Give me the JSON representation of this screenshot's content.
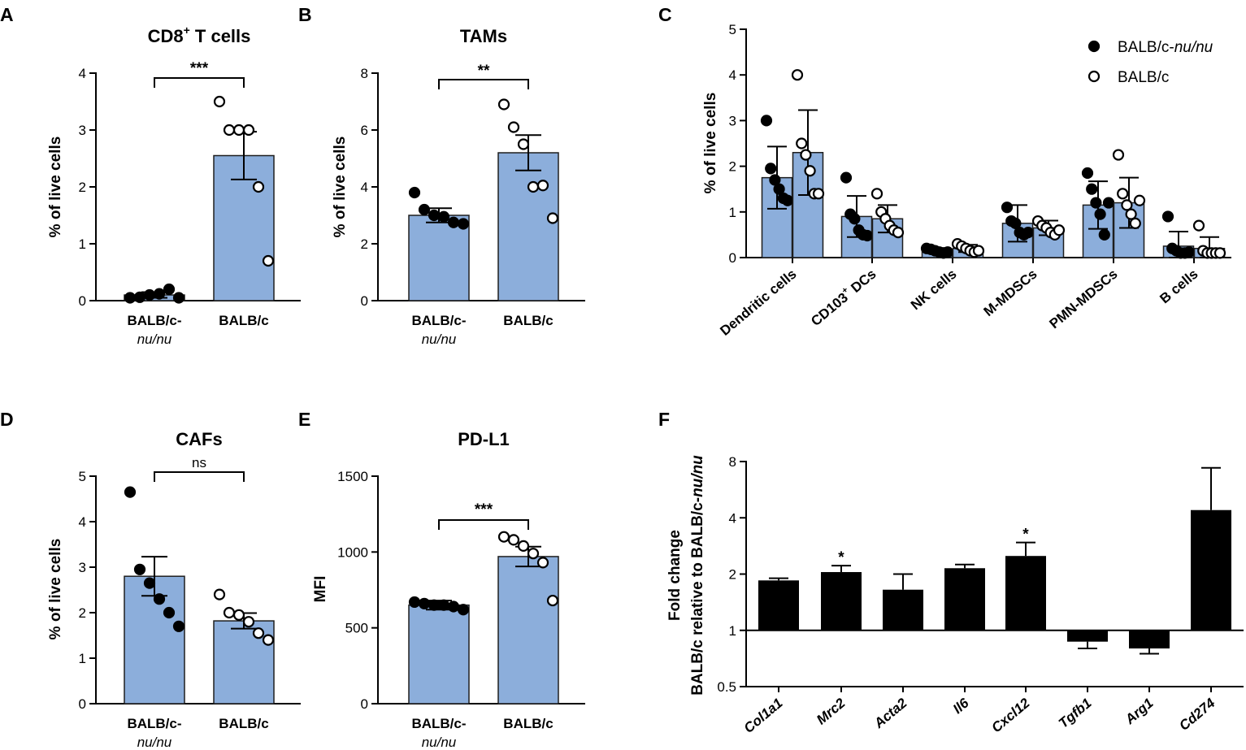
{
  "chart_data": [
    {
      "panel": "A",
      "type": "bar",
      "title": "CD8",
      "title_sup": "+",
      "title_rest": " T cells",
      "ylabel": "% of live cells",
      "ylim": [
        0,
        4
      ],
      "yticks": [
        "0",
        "1",
        "2",
        "3",
        "4"
      ],
      "categories": [
        {
          "line1": "BALB/c-",
          "line2": "nu/nu"
        },
        {
          "line1": "BALB/c",
          "line2": ""
        }
      ],
      "values": [
        0.1,
        2.55
      ],
      "err": [
        0.05,
        0.42
      ],
      "points": [
        [
          0.05,
          0.06,
          0.1,
          0.12,
          0.2,
          0.05
        ],
        [
          3.5,
          3.0,
          3.0,
          3.0,
          2.0,
          0.7
        ]
      ],
      "significance": "***"
    },
    {
      "panel": "B",
      "type": "bar",
      "title": "TAMs",
      "ylabel": "% of live cells",
      "ylim": [
        0,
        8
      ],
      "yticks": [
        "0",
        "2",
        "4",
        "6",
        "8"
      ],
      "categories": [
        {
          "line1": "BALB/c-",
          "line2": "nu/nu"
        },
        {
          "line1": "BALB/c",
          "line2": ""
        }
      ],
      "values": [
        3.0,
        5.2
      ],
      "err": [
        0.25,
        0.62
      ],
      "points": [
        [
          3.8,
          3.2,
          3.0,
          2.95,
          2.75,
          2.7
        ],
        [
          6.9,
          6.1,
          5.5,
          4.0,
          4.05,
          2.9
        ]
      ],
      "significance": "**"
    },
    {
      "panel": "C",
      "type": "bar",
      "ylabel": "% of live cells",
      "ylim": [
        0,
        5
      ],
      "yticks": [
        "0",
        "1",
        "2",
        "3",
        "4",
        "5"
      ],
      "categories": [
        "Dendritic cells",
        "CD103+ DCs",
        "NK cells",
        "M-MDSCs",
        "PMN-MDSCs",
        "B cells"
      ],
      "cat_sup_index": 1,
      "series": [
        {
          "name": "BALB/c-nu/nu",
          "name_base": "BALB/c-",
          "name_italic": "nu/nu",
          "values": [
            1.75,
            0.9,
            0.15,
            0.75,
            1.15,
            0.25
          ],
          "err": [
            0.68,
            0.45,
            0.06,
            0.4,
            0.52,
            0.32
          ],
          "points": [
            [
              3.0,
              1.95,
              1.7,
              1.5,
              1.3,
              1.25
            ],
            [
              1.75,
              0.95,
              0.85,
              0.6,
              0.5,
              0.48
            ],
            [
              0.2,
              0.18,
              0.15,
              0.12,
              0.1,
              0.12
            ],
            [
              1.1,
              0.8,
              0.75,
              0.55,
              0.5,
              0.55
            ],
            [
              1.85,
              1.5,
              1.2,
              0.95,
              0.5,
              1.2
            ],
            [
              0.9,
              0.2,
              0.15,
              0.1,
              0.1,
              0.12
            ]
          ]
        },
        {
          "name": "BALB/c",
          "name_base": "BALB/c",
          "name_italic": "",
          "values": [
            2.3,
            0.85,
            0.2,
            0.65,
            1.2,
            0.2
          ],
          "err": [
            0.93,
            0.3,
            0.08,
            0.16,
            0.55,
            0.25
          ],
          "points": [
            [
              4.0,
              2.5,
              2.25,
              1.9,
              1.4,
              1.4
            ],
            [
              1.4,
              1.0,
              0.85,
              0.7,
              0.6,
              0.55
            ],
            [
              0.3,
              0.25,
              0.2,
              0.15,
              0.12,
              0.15
            ],
            [
              0.8,
              0.7,
              0.65,
              0.55,
              0.5,
              0.6
            ],
            [
              2.25,
              1.4,
              1.15,
              0.95,
              0.75,
              1.25
            ],
            [
              0.7,
              0.15,
              0.1,
              0.1,
              0.1,
              0.1
            ]
          ]
        }
      ]
    },
    {
      "panel": "D",
      "type": "bar",
      "title": "CAFs",
      "ylabel": "% of live cells",
      "ylim": [
        0,
        5
      ],
      "yticks": [
        "0",
        "1",
        "2",
        "3",
        "4",
        "5"
      ],
      "categories": [
        {
          "line1": "BALB/c-",
          "line2": "nu/nu"
        },
        {
          "line1": "BALB/c",
          "line2": ""
        }
      ],
      "values": [
        2.8,
        1.82
      ],
      "err": [
        0.43,
        0.17
      ],
      "points": [
        [
          4.65,
          2.95,
          2.65,
          2.3,
          2.0,
          1.7
        ],
        [
          2.4,
          2.0,
          1.95,
          1.8,
          1.55,
          1.4
        ]
      ],
      "significance": "ns"
    },
    {
      "panel": "E",
      "type": "bar",
      "title": "PD-L1",
      "ylabel": "MFI",
      "ylim": [
        0,
        1500
      ],
      "yticks": [
        "0",
        "500",
        "1000",
        "1500"
      ],
      "categories": [
        {
          "line1": "BALB/c-",
          "line2": "nu/nu"
        },
        {
          "line1": "BALB/c",
          "line2": ""
        }
      ],
      "values": [
        650,
        970
      ],
      "err": [
        30,
        65
      ],
      "points": [
        [
          670,
          660,
          650,
          650,
          640,
          620
        ],
        [
          1100,
          1080,
          1040,
          990,
          930,
          680
        ]
      ],
      "significance": "***"
    },
    {
      "panel": "F",
      "type": "bar",
      "yscale": "log2",
      "ylabel_line1": "Fold change",
      "ylabel_line2_base": "BALB/c relative to BALB/c-",
      "ylabel_line2_italic": "nu/nu",
      "ylim": [
        0.5,
        8
      ],
      "yticks": [
        0.5,
        1,
        2,
        4,
        8
      ],
      "ytick_labels": [
        "0.5",
        "1",
        "2",
        "4",
        "8"
      ],
      "categories": [
        "Col1a1",
        "Mrc2",
        "Acta2",
        "Il6",
        "Cxcl12",
        "Tgfb1",
        "Arg1",
        "Cd274"
      ],
      "values": [
        1.85,
        2.05,
        1.65,
        2.15,
        2.5,
        0.87,
        0.8,
        4.4
      ],
      "err_hi": [
        1.9,
        2.22,
        2.0,
        2.25,
        2.95,
        null,
        null,
        7.4
      ],
      "err_lo": [
        null,
        null,
        null,
        null,
        null,
        0.8,
        0.75,
        null
      ],
      "sig": [
        "",
        "*",
        "",
        "",
        "*",
        "",
        "",
        ""
      ]
    }
  ],
  "panel_letters": [
    "A",
    "B",
    "C",
    "D",
    "E",
    "F"
  ],
  "colors": {
    "bar": "#8caedb",
    "bar_edge": "#1e1e1e",
    "black_bar": "#000000",
    "axis": "#000000"
  }
}
